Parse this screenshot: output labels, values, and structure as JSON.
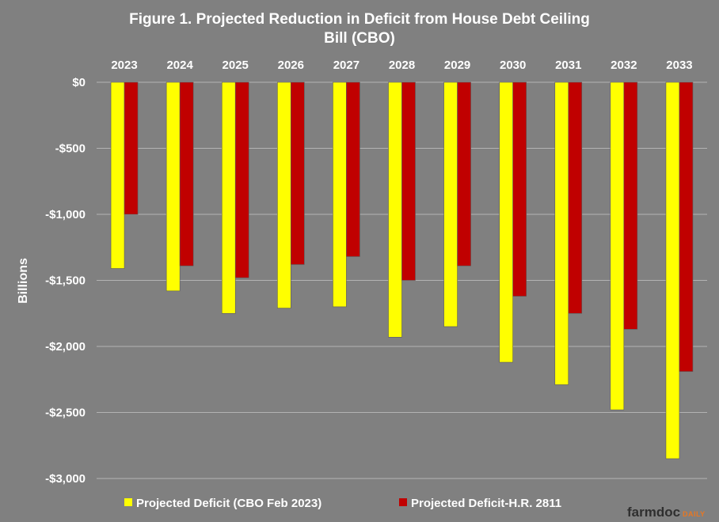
{
  "chart_data": {
    "type": "bar",
    "title_lines": [
      "Figure 1. Projected Reduction in Deficit from House Debt Ceiling",
      "Bill (CBO)"
    ],
    "ylabel": "Billions",
    "xlabel": "",
    "categories": [
      "2023",
      "2024",
      "2025",
      "2026",
      "2027",
      "2028",
      "2029",
      "2030",
      "2031",
      "2032",
      "2033"
    ],
    "series": [
      {
        "name": "Projected Deficit (CBO Feb 2023)",
        "color": "#ffff00",
        "values": [
          -1410,
          -1580,
          -1750,
          -1710,
          -1700,
          -1930,
          -1850,
          -2120,
          -2290,
          -2480,
          -2850
        ]
      },
      {
        "name": "Projected Deficit-H.R. 2811",
        "color": "#c00000",
        "values": [
          -1000,
          -1390,
          -1480,
          -1380,
          -1320,
          -1500,
          -1390,
          -1620,
          -1750,
          -1870,
          -2190
        ]
      }
    ],
    "ylim": [
      -3000,
      0
    ],
    "yticks": [
      0,
      -500,
      -1000,
      -1500,
      -2000,
      -2500,
      -3000
    ],
    "ytick_labels": [
      "$0",
      "-$500",
      "-$1,000",
      "-$1,500",
      "-$2,000",
      "-$2,500",
      "-$3,000"
    ],
    "grid": true,
    "legend_position": "bottom",
    "xaxis_position": "top"
  },
  "brand": {
    "part1": "farmdoc",
    "part2": "DAILY"
  }
}
